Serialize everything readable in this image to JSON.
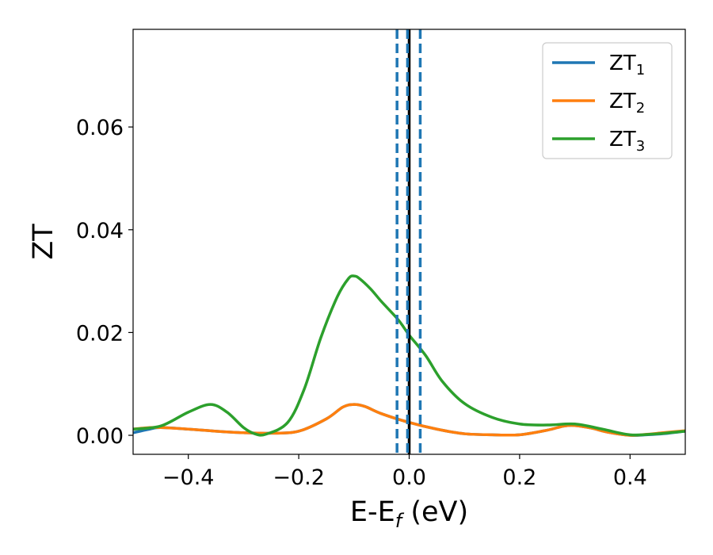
{
  "chart_data": {
    "type": "line",
    "xlabel": "E-E_f (eV)",
    "xlabel_main": "E-E",
    "xlabel_sub": "f",
    "xlabel_unit": " (eV)",
    "ylabel": "ZT",
    "xlim": [
      -0.5,
      0.5
    ],
    "ylim": [
      -0.0037,
      0.079
    ],
    "xticks": [
      -0.4,
      -0.2,
      0.0,
      0.2,
      0.4
    ],
    "xtick_labels": [
      "−0.4",
      "−0.2",
      "0.0",
      "0.2",
      "0.4"
    ],
    "yticks": [
      0.0,
      0.02,
      0.04,
      0.06
    ],
    "ytick_labels": [
      "0.00",
      "0.02",
      "0.04",
      "0.06"
    ],
    "grid": false,
    "legend_position": "top-right",
    "series": [
      {
        "name": "ZT1",
        "label_main": "ZT",
        "label_sub": "1",
        "color": "#1f77b4",
        "x": [
          -0.5,
          -0.47,
          -0.45,
          -0.4,
          -0.35,
          -0.3,
          -0.25,
          -0.2,
          -0.15,
          -0.12,
          -0.1,
          -0.08,
          -0.05,
          0.0,
          0.05,
          0.1,
          0.15,
          0.2,
          0.25,
          0.28,
          0.3,
          0.33,
          0.36,
          0.4,
          0.43,
          0.46,
          0.5
        ],
        "y": [
          0.0005,
          0.0012,
          0.0015,
          0.0012,
          0.0008,
          0.0005,
          0.0004,
          0.0008,
          0.0032,
          0.0055,
          0.006,
          0.0056,
          0.0042,
          0.0025,
          0.0012,
          0.0003,
          0.0001,
          0.0001,
          0.001,
          0.0018,
          0.0019,
          0.0014,
          0.0006,
          0.0,
          0.0001,
          0.0003,
          0.0008
        ]
      },
      {
        "name": "ZT2",
        "label_main": "ZT",
        "label_sub": "2",
        "color": "#ff7f0e",
        "x": [
          -0.5,
          -0.47,
          -0.45,
          -0.4,
          -0.35,
          -0.3,
          -0.25,
          -0.2,
          -0.15,
          -0.12,
          -0.1,
          -0.08,
          -0.05,
          0.0,
          0.05,
          0.1,
          0.15,
          0.2,
          0.25,
          0.28,
          0.3,
          0.33,
          0.36,
          0.4,
          0.43,
          0.46,
          0.5
        ],
        "y": [
          0.0012,
          0.0015,
          0.0015,
          0.0012,
          0.0008,
          0.0005,
          0.0004,
          0.0008,
          0.0032,
          0.0055,
          0.006,
          0.0056,
          0.0042,
          0.0025,
          0.0012,
          0.0003,
          0.0001,
          0.0001,
          0.001,
          0.0018,
          0.0019,
          0.0014,
          0.0006,
          0.0,
          0.0002,
          0.0005,
          0.0009
        ]
      },
      {
        "name": "ZT3",
        "label_main": "ZT",
        "label_sub": "3",
        "color": "#2ca02c",
        "x": [
          -0.5,
          -0.45,
          -0.4,
          -0.36,
          -0.33,
          -0.3,
          -0.28,
          -0.26,
          -0.22,
          -0.19,
          -0.16,
          -0.13,
          -0.11,
          -0.1,
          -0.09,
          -0.07,
          -0.05,
          -0.02,
          0.0,
          0.03,
          0.06,
          0.1,
          0.15,
          0.2,
          0.25,
          0.3,
          0.35,
          0.4,
          0.45,
          0.5
        ],
        "y": [
          0.0012,
          0.0018,
          0.0045,
          0.006,
          0.0045,
          0.0015,
          0.0003,
          0.0002,
          0.0025,
          0.009,
          0.019,
          0.027,
          0.0305,
          0.031,
          0.0305,
          0.0285,
          0.026,
          0.0225,
          0.0195,
          0.0155,
          0.0105,
          0.0062,
          0.0035,
          0.0022,
          0.002,
          0.0022,
          0.0012,
          0.0001,
          0.0003,
          0.0008
        ]
      }
    ],
    "vertical_lines": [
      {
        "x": 0.0,
        "style": "solid",
        "color": "#000000"
      },
      {
        "x": -0.022,
        "style": "dashed",
        "color": "#1f77b4"
      },
      {
        "x": -0.003,
        "style": "dashed",
        "color": "#1f77b4"
      },
      {
        "x": 0.02,
        "style": "dashed",
        "color": "#1f77b4"
      }
    ]
  }
}
